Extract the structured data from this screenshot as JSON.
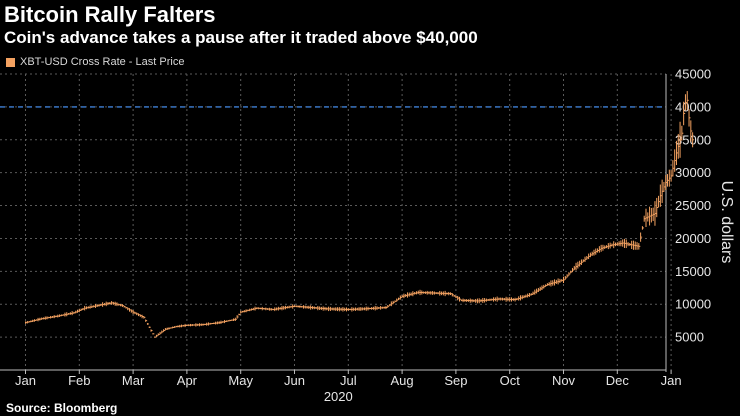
{
  "colors": {
    "background": "#000000",
    "series": "#f4a261",
    "grid": "#5a5a5a",
    "reference_line": "#3d7fd6",
    "text": "#ffffff"
  },
  "header": {
    "title": "Bitcoin Rally Falters",
    "subtitle": "Coin's advance takes a pause after it traded above $40,000"
  },
  "legend": {
    "label": "XBT-USD Cross Rate - Last Price"
  },
  "footer": {
    "source": "Source: Bloomberg"
  },
  "chart_data": {
    "type": "line",
    "style": "high-low bars",
    "title": "Bitcoin Rally Falters",
    "subtitle": "Coin's advance takes a pause after it traded above $40,000",
    "xlabel": "2020",
    "ylabel": "U.S. dollars",
    "ylim": [
      0,
      45000
    ],
    "yticks": [
      5000,
      10000,
      15000,
      20000,
      25000,
      30000,
      35000,
      40000,
      45000
    ],
    "xticks": [
      "Jan",
      "Feb",
      "Mar",
      "Apr",
      "May",
      "Jun",
      "Jul",
      "Aug",
      "Sep",
      "Oct",
      "Nov",
      "Dec",
      "Jan"
    ],
    "grid": true,
    "reference_line": {
      "y": 40000,
      "style": "dashed"
    },
    "series": [
      {
        "name": "XBT-USD Cross Rate - Last Price",
        "x_unit": "months since 2020-01-01",
        "points": [
          [
            0.0,
            7200
          ],
          [
            0.3,
            7800
          ],
          [
            0.6,
            8200
          ],
          [
            0.9,
            8700
          ],
          [
            1.1,
            9400
          ],
          [
            1.4,
            9900
          ],
          [
            1.6,
            10200
          ],
          [
            1.8,
            9800
          ],
          [
            2.0,
            8800
          ],
          [
            2.2,
            8000
          ],
          [
            2.4,
            5000
          ],
          [
            2.6,
            6200
          ],
          [
            2.8,
            6600
          ],
          [
            3.0,
            6800
          ],
          [
            3.3,
            6900
          ],
          [
            3.6,
            7200
          ],
          [
            3.9,
            7700
          ],
          [
            4.0,
            8800
          ],
          [
            4.3,
            9400
          ],
          [
            4.6,
            9200
          ],
          [
            5.0,
            9700
          ],
          [
            5.3,
            9500
          ],
          [
            5.6,
            9300
          ],
          [
            6.0,
            9200
          ],
          [
            6.3,
            9300
          ],
          [
            6.7,
            9500
          ],
          [
            7.0,
            11200
          ],
          [
            7.3,
            11800
          ],
          [
            7.6,
            11700
          ],
          [
            7.9,
            11600
          ],
          [
            8.1,
            10600
          ],
          [
            8.4,
            10500
          ],
          [
            8.8,
            10800
          ],
          [
            9.1,
            10700
          ],
          [
            9.4,
            11500
          ],
          [
            9.7,
            13000
          ],
          [
            10.0,
            13700
          ],
          [
            10.2,
            15500
          ],
          [
            10.5,
            17500
          ],
          [
            10.7,
            18500
          ],
          [
            10.9,
            19000
          ],
          [
            11.1,
            19300
          ],
          [
            11.4,
            18800
          ],
          [
            11.5,
            23000
          ],
          [
            11.7,
            23800
          ],
          [
            11.8,
            26500
          ],
          [
            11.9,
            28500
          ],
          [
            12.0,
            29500
          ],
          [
            12.1,
            33000
          ],
          [
            12.2,
            36000
          ],
          [
            12.25,
            40500
          ],
          [
            12.3,
            41000
          ],
          [
            12.35,
            37000
          ],
          [
            12.4,
            35000
          ]
        ]
      }
    ]
  }
}
